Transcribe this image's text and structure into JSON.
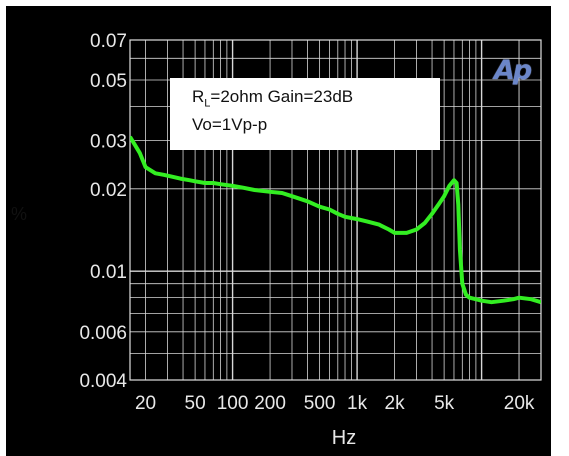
{
  "chart_data": {
    "type": "line",
    "xlabel": "Hz",
    "ylabel": "%",
    "x_scale": "log",
    "y_scale": "log",
    "xlim": [
      15,
      30000
    ],
    "ylim": [
      0.004,
      0.07
    ],
    "grid": true,
    "x_ticks": [
      {
        "value": 20,
        "label": "20"
      },
      {
        "value": 50,
        "label": "50"
      },
      {
        "value": 100,
        "label": "100"
      },
      {
        "value": 200,
        "label": "200"
      },
      {
        "value": 500,
        "label": "500"
      },
      {
        "value": 1000,
        "label": "1k"
      },
      {
        "value": 2000,
        "label": "2k"
      },
      {
        "value": 5000,
        "label": "5k"
      },
      {
        "value": 20000,
        "label": "20k"
      }
    ],
    "y_ticks": [
      {
        "value": 0.07,
        "label": "0.07"
      },
      {
        "value": 0.05,
        "label": "0.05"
      },
      {
        "value": 0.03,
        "label": "0.03"
      },
      {
        "value": 0.02,
        "label": "0.02"
      },
      {
        "value": 0.01,
        "label": "0.01"
      },
      {
        "value": 0.006,
        "label": "0.006"
      },
      {
        "value": 0.004,
        "label": "0.004"
      }
    ],
    "annotation": {
      "r_label": "R",
      "r_subscript": "L",
      "line1_rest": "=2ohm Gain=23dB",
      "line2": "Vo=1Vp-p"
    },
    "logo": "Ap",
    "series": [
      {
        "color": "#33ee22",
        "x": [
          15,
          18,
          20,
          24,
          28,
          32,
          38,
          45,
          50,
          60,
          70,
          80,
          100,
          120,
          150,
          200,
          250,
          300,
          400,
          500,
          600,
          700,
          800,
          1000,
          1200,
          1500,
          1800,
          2000,
          2500,
          3000,
          3500,
          4000,
          4500,
          5000,
          5500,
          6000,
          6300,
          6500,
          6700,
          7000,
          7500,
          8000,
          9000,
          10000,
          12000,
          15000,
          18000,
          20000,
          25000,
          30000
        ],
        "y": [
          0.031,
          0.027,
          0.024,
          0.0228,
          0.0225,
          0.0222,
          0.0218,
          0.0215,
          0.0213,
          0.021,
          0.021,
          0.0208,
          0.0205,
          0.0202,
          0.0198,
          0.0195,
          0.0193,
          0.0188,
          0.018,
          0.0172,
          0.0168,
          0.0162,
          0.0158,
          0.0155,
          0.0152,
          0.0148,
          0.0142,
          0.0138,
          0.0138,
          0.0142,
          0.015,
          0.0162,
          0.0175,
          0.0188,
          0.0205,
          0.0215,
          0.021,
          0.0175,
          0.012,
          0.009,
          0.0082,
          0.008,
          0.0079,
          0.0078,
          0.0077,
          0.0078,
          0.0079,
          0.008,
          0.0079,
          0.0077
        ]
      }
    ]
  }
}
